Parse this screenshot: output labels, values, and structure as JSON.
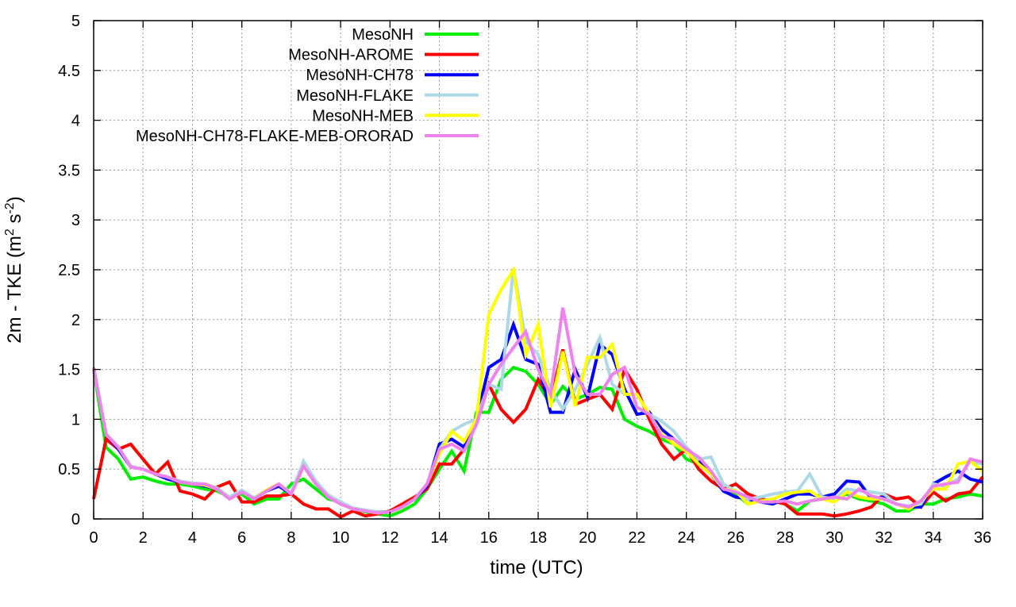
{
  "chart_data": {
    "type": "line",
    "title": "",
    "xlabel": "time (UTC)",
    "ylabel": {
      "prefix": "2m - TKE (m",
      "sup1": "2",
      "mid": " s",
      "sup2": "-2",
      "suffix": ")"
    },
    "xlim": [
      0,
      36
    ],
    "ylim": [
      0,
      5
    ],
    "grid": true,
    "legend_position": "top-left",
    "xticks": [
      "0",
      "2",
      "4",
      "6",
      "8",
      "10",
      "12",
      "14",
      "16",
      "18",
      "20",
      "22",
      "24",
      "26",
      "28",
      "30",
      "32",
      "34",
      "36"
    ],
    "yticks": [
      "0",
      "0.5",
      "1",
      "1.5",
      "2",
      "2.5",
      "3",
      "3.5",
      "4",
      "4.5",
      "5"
    ],
    "x_step": 0.5,
    "series": [
      {
        "name": "MesoNH",
        "color": "#00ee00",
        "values": [
          1.5,
          0.72,
          0.6,
          0.4,
          0.42,
          0.38,
          0.35,
          0.35,
          0.33,
          0.3,
          0.28,
          0.22,
          0.25,
          0.15,
          0.2,
          0.2,
          0.35,
          0.4,
          0.3,
          0.2,
          0.17,
          0.1,
          0.07,
          0.05,
          0.03,
          0.08,
          0.15,
          0.3,
          0.5,
          0.68,
          0.48,
          1.07,
          1.07,
          1.4,
          1.52,
          1.48,
          1.35,
          1.15,
          1.33,
          1.2,
          1.25,
          1.32,
          1.3,
          1.0,
          0.93,
          0.88,
          0.8,
          0.75,
          0.6,
          0.55,
          0.45,
          0.3,
          0.25,
          0.15,
          0.2,
          0.18,
          0.15,
          0.08,
          0.18,
          0.2,
          0.2,
          0.25,
          0.2,
          0.18,
          0.15,
          0.08,
          0.08,
          0.15,
          0.15,
          0.2,
          0.22,
          0.25,
          0.23
        ]
      },
      {
        "name": "MesoNH-AROME",
        "color": "#ff0000",
        "values": [
          0.2,
          0.8,
          0.7,
          0.75,
          0.6,
          0.45,
          0.57,
          0.28,
          0.25,
          0.2,
          0.32,
          0.37,
          0.17,
          0.17,
          0.23,
          0.23,
          0.25,
          0.15,
          0.1,
          0.1,
          0.02,
          0.08,
          0.03,
          0.05,
          0.08,
          0.15,
          0.22,
          0.3,
          0.55,
          0.55,
          0.7,
          0.95,
          1.35,
          1.1,
          0.97,
          1.1,
          1.4,
          1.2,
          1.7,
          1.15,
          1.2,
          1.25,
          1.1,
          1.5,
          1.3,
          1.0,
          0.75,
          0.6,
          0.7,
          0.5,
          0.38,
          0.3,
          0.35,
          0.25,
          0.2,
          0.18,
          0.15,
          0.05,
          0.05,
          0.05,
          0.03,
          0.05,
          0.08,
          0.12,
          0.25,
          0.2,
          0.22,
          0.12,
          0.27,
          0.18,
          0.25,
          0.27,
          0.42
        ]
      },
      {
        "name": "MesoNH-CH78",
        "color": "#0000ff",
        "values": [
          1.5,
          0.85,
          0.7,
          0.52,
          0.5,
          0.45,
          0.4,
          0.37,
          0.35,
          0.33,
          0.3,
          0.22,
          0.28,
          0.2,
          0.28,
          0.33,
          0.25,
          0.55,
          0.35,
          0.22,
          0.17,
          0.1,
          0.08,
          0.07,
          0.07,
          0.12,
          0.2,
          0.33,
          0.75,
          0.8,
          0.72,
          1.0,
          1.52,
          1.6,
          1.95,
          1.6,
          1.55,
          1.07,
          1.07,
          1.5,
          1.22,
          1.75,
          1.65,
          1.3,
          1.05,
          1.07,
          0.9,
          0.8,
          0.7,
          0.6,
          0.45,
          0.28,
          0.22,
          0.2,
          0.17,
          0.15,
          0.2,
          0.25,
          0.25,
          0.22,
          0.25,
          0.38,
          0.37,
          0.2,
          0.22,
          0.15,
          0.12,
          0.12,
          0.35,
          0.42,
          0.48,
          0.4,
          0.37
        ]
      },
      {
        "name": "MesoNH-FLAKE",
        "color": "#add8e6",
        "values": [
          1.5,
          0.85,
          0.72,
          0.53,
          0.5,
          0.45,
          0.42,
          0.38,
          0.36,
          0.35,
          0.31,
          0.22,
          0.29,
          0.21,
          0.29,
          0.35,
          0.26,
          0.58,
          0.38,
          0.24,
          0.17,
          0.11,
          0.09,
          0.07,
          0.07,
          0.12,
          0.2,
          0.35,
          0.7,
          0.88,
          0.95,
          1.0,
          1.35,
          1.3,
          2.52,
          1.78,
          1.65,
          1.3,
          1.1,
          1.3,
          1.55,
          1.82,
          1.35,
          1.25,
          1.25,
          1.05,
          0.98,
          0.88,
          0.72,
          0.6,
          0.62,
          0.35,
          0.28,
          0.2,
          0.22,
          0.25,
          0.27,
          0.28,
          0.45,
          0.22,
          0.2,
          0.3,
          0.28,
          0.27,
          0.25,
          0.15,
          0.13,
          0.15,
          0.35,
          0.33,
          0.4,
          0.58,
          0.55
        ]
      },
      {
        "name": "MesoNH-MEB",
        "color": "#ffff00",
        "values": [
          1.52,
          0.85,
          0.72,
          0.52,
          0.5,
          0.45,
          0.42,
          0.37,
          0.35,
          0.34,
          0.3,
          0.2,
          0.27,
          0.2,
          0.29,
          0.35,
          0.25,
          0.53,
          0.35,
          0.22,
          0.15,
          0.1,
          0.08,
          0.06,
          0.07,
          0.12,
          0.2,
          0.35,
          0.65,
          0.88,
          0.78,
          1.0,
          2.05,
          2.3,
          2.5,
          1.65,
          1.95,
          1.12,
          1.68,
          1.13,
          1.62,
          1.62,
          1.75,
          1.25,
          1.25,
          1.05,
          0.85,
          0.75,
          0.68,
          0.55,
          0.45,
          0.3,
          0.28,
          0.15,
          0.18,
          0.2,
          0.25,
          0.27,
          0.28,
          0.2,
          0.17,
          0.27,
          0.22,
          0.2,
          0.2,
          0.15,
          0.1,
          0.18,
          0.3,
          0.3,
          0.55,
          0.58,
          0.48
        ]
      },
      {
        "name": "MesoNH-CH78-FLAKE-MEB-ORORAD",
        "color": "#ee82ee",
        "values": [
          1.52,
          0.85,
          0.72,
          0.52,
          0.5,
          0.45,
          0.42,
          0.37,
          0.35,
          0.35,
          0.3,
          0.2,
          0.27,
          0.2,
          0.28,
          0.35,
          0.25,
          0.53,
          0.35,
          0.22,
          0.15,
          0.1,
          0.08,
          0.06,
          0.07,
          0.12,
          0.2,
          0.35,
          0.7,
          0.75,
          0.68,
          0.95,
          1.35,
          1.55,
          1.72,
          1.88,
          1.5,
          1.25,
          2.12,
          1.45,
          1.25,
          1.25,
          1.45,
          1.52,
          1.12,
          1.05,
          0.83,
          0.8,
          0.7,
          0.62,
          0.48,
          0.3,
          0.27,
          0.22,
          0.17,
          0.17,
          0.18,
          0.15,
          0.18,
          0.2,
          0.22,
          0.2,
          0.3,
          0.23,
          0.2,
          0.15,
          0.12,
          0.18,
          0.33,
          0.35,
          0.37,
          0.6,
          0.57
        ]
      }
    ]
  }
}
